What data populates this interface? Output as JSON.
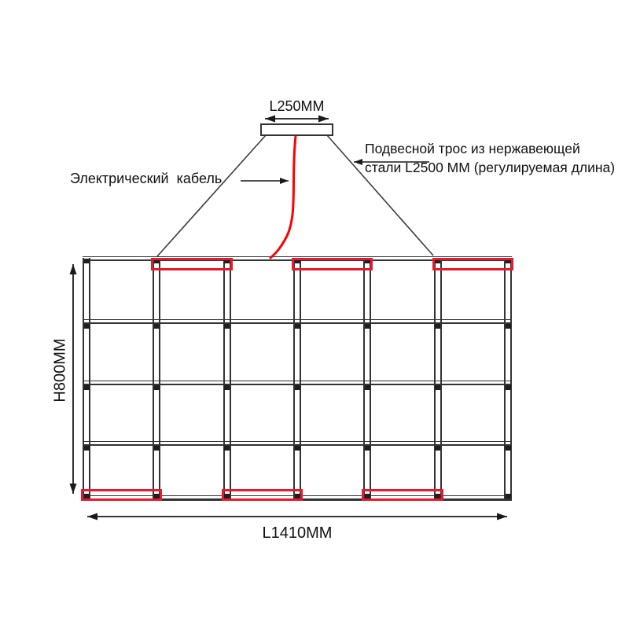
{
  "diagram_title": "pendant-lamp-technical-drawing",
  "labels": {
    "canopy_width": "L250MM",
    "electric_cable": "Электрический кабель",
    "suspension_line1": "Подвесной трос из нержавеющей",
    "suspension_line2": "стали L2500 ММ (регулируемая длина)",
    "frame_height": "H800MM",
    "frame_length": "L1410MM"
  },
  "structure": {
    "type": "diagram",
    "columns": 6,
    "rows": 4,
    "posts": 7,
    "rails": 5,
    "red_cells_top": [
      2,
      4,
      6
    ],
    "red_cells_bottom": [
      1,
      3,
      5
    ]
  },
  "colors": {
    "frame_line": "#333333",
    "connector": "#1f1f1f",
    "red_segment": "#e8192c",
    "power_cable": "#ff0000",
    "text": "#111111"
  }
}
